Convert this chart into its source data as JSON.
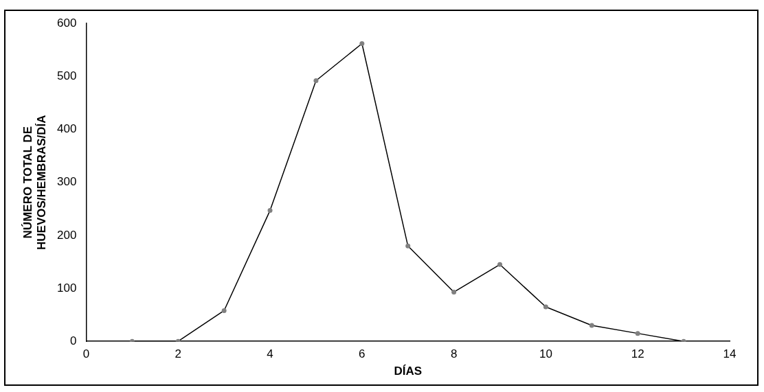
{
  "chart_data": {
    "type": "line",
    "xlabel": "DÍAS",
    "ylabel": "NÚMERO TOTAL DE\nHUEVOS/HEMBRAS/DÍA",
    "x": [
      1,
      2,
      3,
      4,
      5,
      6,
      7,
      8,
      9,
      10,
      11,
      12,
      13
    ],
    "series": [
      {
        "color": "#000000",
        "values": [
          0,
          0,
          58,
          247,
          492,
          562,
          180,
          93,
          145,
          65,
          30,
          15,
          0
        ]
      }
    ],
    "xlim": [
      0,
      14
    ],
    "xticks": [
      0,
      2,
      4,
      6,
      8,
      10,
      12,
      14
    ],
    "ylim": [
      0,
      600
    ],
    "yticks": [
      0,
      100,
      200,
      300,
      400,
      500,
      600
    ],
    "grid": false,
    "legend": false,
    "marker": "circle",
    "line_style": "solid"
  }
}
